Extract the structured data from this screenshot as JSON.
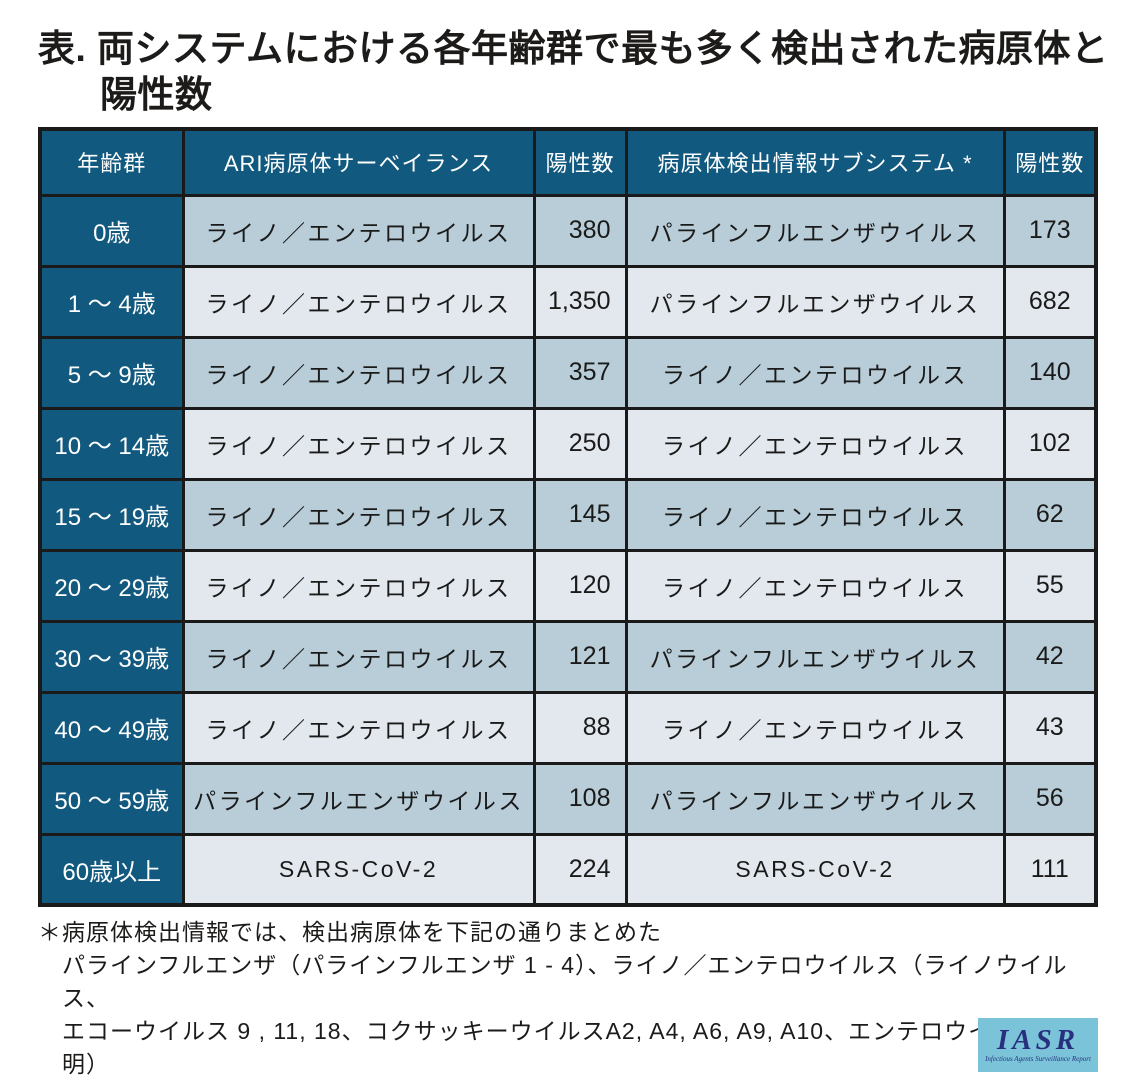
{
  "title": {
    "line1": "表. 両システムにおける各年齢群で最も多く検出された病原体と",
    "line2": "陽性数"
  },
  "table": {
    "headers": [
      "年齢群",
      "ARI病原体サーベイランス",
      "陽性数",
      "病原体検出情報サブシステム *",
      "陽性数"
    ],
    "rows": [
      {
        "age": "0歳",
        "ari_pathogen": "ライノ／エンテロウイルス",
        "ari_count": "380",
        "sub_pathogen": "パラインフルエンザウイルス",
        "sub_count": "173"
      },
      {
        "age": "1 ～ 4歳",
        "ari_pathogen": "ライノ／エンテロウイルス",
        "ari_count": "1,350",
        "sub_pathogen": "パラインフルエンザウイルス",
        "sub_count": "682"
      },
      {
        "age": "5 ～ 9歳",
        "ari_pathogen": "ライノ／エンテロウイルス",
        "ari_count": "357",
        "sub_pathogen": "ライノ／エンテロウイルス",
        "sub_count": "140"
      },
      {
        "age": "10 ～ 14歳",
        "ari_pathogen": "ライノ／エンテロウイルス",
        "ari_count": "250",
        "sub_pathogen": "ライノ／エンテロウイルス",
        "sub_count": "102"
      },
      {
        "age": "15 ～ 19歳",
        "ari_pathogen": "ライノ／エンテロウイルス",
        "ari_count": "145",
        "sub_pathogen": "ライノ／エンテロウイルス",
        "sub_count": "62"
      },
      {
        "age": "20 ～ 29歳",
        "ari_pathogen": "ライノ／エンテロウイルス",
        "ari_count": "120",
        "sub_pathogen": "ライノ／エンテロウイルス",
        "sub_count": "55"
      },
      {
        "age": "30 ～ 39歳",
        "ari_pathogen": "ライノ／エンテロウイルス",
        "ari_count": "121",
        "sub_pathogen": "パラインフルエンザウイルス",
        "sub_count": "42"
      },
      {
        "age": "40 ～ 49歳",
        "ari_pathogen": "ライノ／エンテロウイルス",
        "ari_count": "88",
        "sub_pathogen": "ライノ／エンテロウイルス",
        "sub_count": "43"
      },
      {
        "age": "50 ～ 59歳",
        "ari_pathogen": "パラインフルエンザウイルス",
        "ari_count": "108",
        "sub_pathogen": "パラインフルエンザウイルス",
        "sub_count": "56"
      },
      {
        "age": "60歳以上",
        "ari_pathogen": "SARS-CoV-2",
        "ari_count": "224",
        "sub_pathogen": "SARS-CoV-2",
        "sub_count": "111"
      }
    ]
  },
  "footnote": {
    "line1": "＊病原体検出情報では、検出病原体を下記の通りまとめた",
    "line2": "パラインフルエンザ（パラインフルエンザ 1 - 4）、ライノ／エンテロウイルス（ライノウイルス、",
    "line3": "エコーウイルス 9 , 11, 18、コクサッキーウイルスA2, A4, A6, A9, A10、エンテロウイルス型不明）"
  },
  "logo": {
    "acronym": "IASR",
    "subtitle": "Infectious Agents Surveillance Report"
  },
  "colors": {
    "header_bg": "#11597F",
    "row_dark": "#B8CDD8",
    "row_light": "#E2E8EE",
    "border": "#1A1A1A",
    "logo_bg": "#7AC3D9",
    "logo_text": "#28307E"
  }
}
